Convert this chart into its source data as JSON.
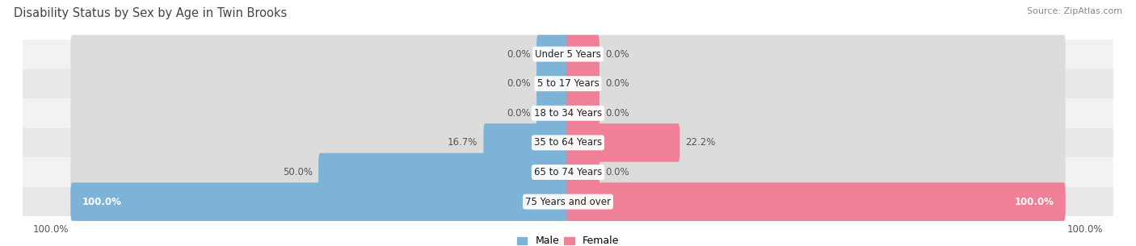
{
  "title": "Disability Status by Sex by Age in Twin Brooks",
  "source": "Source: ZipAtlas.com",
  "categories": [
    "Under 5 Years",
    "5 to 17 Years",
    "18 to 34 Years",
    "35 to 64 Years",
    "65 to 74 Years",
    "75 Years and over"
  ],
  "male_values": [
    0.0,
    0.0,
    0.0,
    16.7,
    50.0,
    100.0
  ],
  "female_values": [
    0.0,
    0.0,
    0.0,
    22.2,
    0.0,
    100.0
  ],
  "male_color": "#7eb3d8",
  "female_color": "#f08098",
  "bar_bg_color": "#dcdcdc",
  "row_bg_even": "#f0f0f0",
  "row_bg_odd": "#e6e6e6",
  "max_val": 100.0,
  "title_fontsize": 10.5,
  "label_fontsize": 8.5,
  "source_fontsize": 8,
  "cat_fontsize": 8.5,
  "legend_fontsize": 9,
  "min_bar_stub": 6.0,
  "bar_rounding": 0.35
}
